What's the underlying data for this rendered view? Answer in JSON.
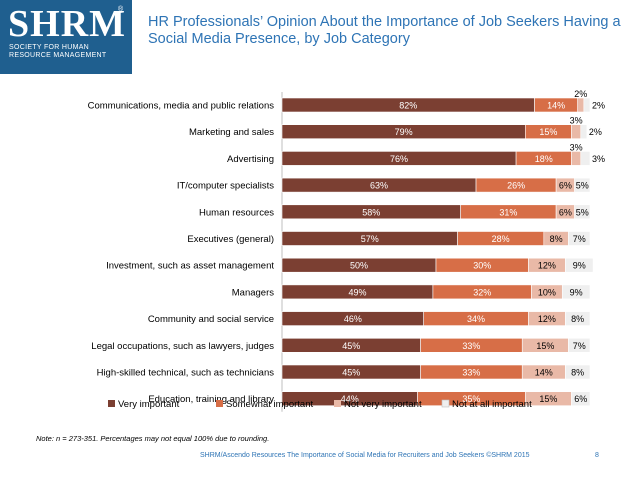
{
  "logo": {
    "text": "SHRM",
    "registered": "®",
    "subtitle": "SOCIETY FOR HUMAN RESOURCE MANAGEMENT"
  },
  "title": "HR Professionals’ Opinion About the Importance of Job Seekers Having a Social Media Presence, by Job Category",
  "note": "Note: n = 273-351. Percentages may not equal 100% due to rounding.",
  "footer": "SHRM/Ascendo Resources The Importance of Social Media for Recruiters and Job Seekers ©SHRM 2015",
  "page_number": "8",
  "colors": {
    "very": "#7b3f32",
    "somewhat": "#d76e47",
    "notvery": "#e9b9a7",
    "notatall": "#efefef",
    "title": "#2e74b5"
  },
  "chart_data": {
    "type": "bar",
    "orientation": "horizontal",
    "stacked": true,
    "xlim": [
      0,
      100
    ],
    "categories": [
      "Communications, media and public relations",
      "Marketing and sales",
      "Advertising",
      "IT/computer specialists",
      "Human resources",
      "Executives (general)",
      "Investment, such as asset management",
      "Managers",
      "Community and social service",
      "Legal occupations, such as lawyers, judges",
      "High-skilled technical, such as technicians",
      "Education, training and library"
    ],
    "series": [
      {
        "name": "Very important",
        "values": [
          82,
          79,
          76,
          63,
          58,
          57,
          50,
          49,
          46,
          45,
          45,
          44
        ]
      },
      {
        "name": "Somewhat important",
        "values": [
          14,
          15,
          18,
          26,
          31,
          28,
          30,
          32,
          34,
          33,
          33,
          35
        ]
      },
      {
        "name": "Not very important",
        "values": [
          2,
          3,
          3,
          6,
          6,
          8,
          12,
          10,
          12,
          15,
          14,
          15
        ]
      },
      {
        "name": "Not at all important",
        "values": [
          2,
          2,
          3,
          5,
          5,
          7,
          9,
          9,
          8,
          7,
          8,
          6
        ]
      }
    ],
    "legend": "bottom",
    "value_suffix": "%"
  }
}
